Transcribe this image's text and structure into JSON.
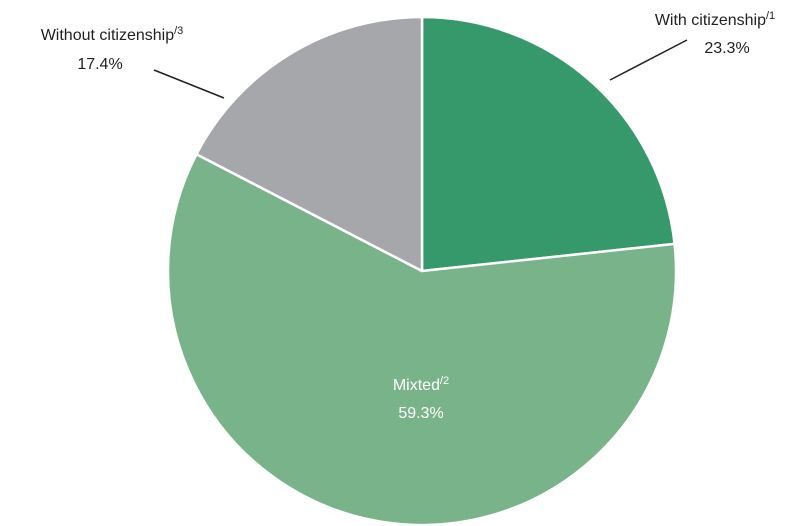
{
  "chart_data": {
    "type": "pie",
    "title": "",
    "start_angle_deg": 0,
    "direction": "clockwise",
    "slices": [
      {
        "label": "With citizenship",
        "footnote": "/1",
        "value": 23.3,
        "value_label": "23.3%",
        "color": "#36996b"
      },
      {
        "label": "Mixted",
        "footnote": "/2",
        "value": 59.3,
        "value_label": "59.3%",
        "color": "#79b38a"
      },
      {
        "label": "Without citizenship",
        "footnote": "/3",
        "value": 17.4,
        "value_label": "17.4%",
        "color": "#a6a7ab"
      }
    ],
    "legend": "none"
  }
}
